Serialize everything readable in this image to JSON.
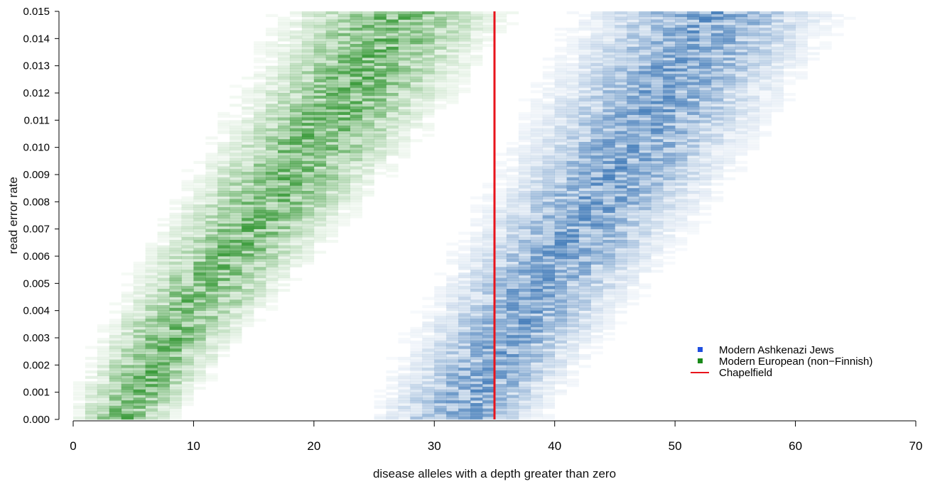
{
  "chart_data": {
    "type": "heatmap",
    "xlabel": "disease alleles with a depth greater than zero",
    "ylabel": "read error rate",
    "xlim": [
      0,
      70
    ],
    "ylim": [
      0,
      0.015
    ],
    "x_ticks": [
      "0",
      "10",
      "20",
      "30",
      "40",
      "50",
      "60",
      "70"
    ],
    "y_ticks": [
      "0.000",
      "0.001",
      "0.002",
      "0.003",
      "0.004",
      "0.005",
      "0.006",
      "0.007",
      "0.008",
      "0.009",
      "0.010",
      "0.011",
      "0.012",
      "0.013",
      "0.014",
      "0.015"
    ],
    "bin": {
      "x_width": 1,
      "y_height": 0.0001
    },
    "series": [
      {
        "name": "Modern European (non−Finnish)",
        "color": "#1a8a1a",
        "marker": "square",
        "density_ridge": [
          {
            "y": 0.0,
            "x_center": 4.0,
            "x_spread": 2.0
          },
          {
            "y": 0.003,
            "x_center": 8.0,
            "x_spread": 2.6
          },
          {
            "y": 0.006,
            "x_center": 13.0,
            "x_spread": 3.2
          },
          {
            "y": 0.009,
            "x_center": 18.0,
            "x_spread": 3.6
          },
          {
            "y": 0.012,
            "x_center": 23.0,
            "x_spread": 4.0
          },
          {
            "y": 0.015,
            "x_center": 27.0,
            "x_spread": 4.3
          }
        ]
      },
      {
        "name": "Modern Ashkenazi Jews",
        "color": "#2b6bb0",
        "marker": "square",
        "density_ridge": [
          {
            "y": 0.0,
            "x_center": 32.0,
            "x_spread": 3.2
          },
          {
            "y": 0.003,
            "x_center": 36.0,
            "x_spread": 3.6
          },
          {
            "y": 0.006,
            "x_center": 40.5,
            "x_spread": 4.0
          },
          {
            "y": 0.009,
            "x_center": 45.0,
            "x_spread": 4.4
          },
          {
            "y": 0.012,
            "x_center": 49.0,
            "x_spread": 4.7
          },
          {
            "y": 0.015,
            "x_center": 53.0,
            "x_spread": 5.0
          }
        ]
      }
    ],
    "reference_lines": [
      {
        "name": "Chapelfield",
        "orientation": "vertical",
        "x": 35,
        "color": "#e8141c"
      }
    ],
    "legend": {
      "position": "bottom-right",
      "entries": [
        {
          "label": "Modern Ashkenazi Jews",
          "color": "#1f4fe0",
          "marker": "square"
        },
        {
          "label": "Modern European (non−Finnish)",
          "color": "#1a8a1a",
          "marker": "square"
        },
        {
          "label": "Chapelfield",
          "color": "#e8141c",
          "marker": "line"
        }
      ]
    },
    "grid": false
  }
}
